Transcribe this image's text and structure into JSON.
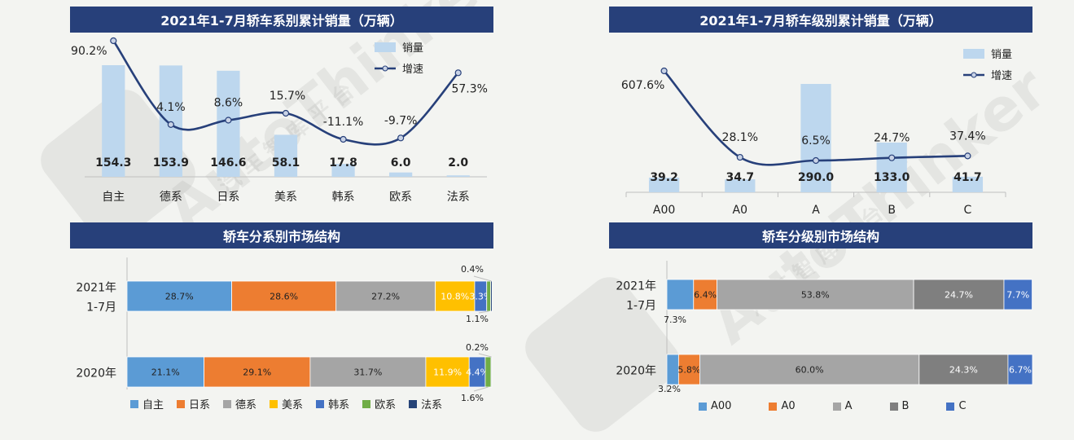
{
  "watermark": {
    "text": "AutoThinker",
    "sub": "汽 车 智 库 平 台"
  },
  "chart_data": [
    {
      "id": "series-sales",
      "type": "bar",
      "title": "2021年1-7月轿车系别累计销量（万辆）",
      "categories": [
        "自主",
        "德系",
        "日系",
        "美系",
        "韩系",
        "欧系",
        "法系"
      ],
      "series": [
        {
          "name": "销量",
          "type": "bar",
          "values": [
            154.3,
            153.9,
            146.6,
            58.1,
            17.8,
            6.0,
            2.0
          ],
          "labels": [
            "154.3",
            "153.9",
            "146.6",
            "58.1",
            "17.8",
            "6.0",
            "2.0"
          ],
          "color": "#bdd7ee"
        },
        {
          "name": "增速",
          "type": "line",
          "values": [
            90.2,
            4.1,
            8.6,
            15.7,
            -11.1,
            -9.7,
            57.3
          ],
          "labels": [
            "90.2%",
            "4.1%",
            "8.6%",
            "15.7%",
            "-11.1%",
            "-9.7%",
            "57.3%"
          ],
          "color": "#27407a"
        }
      ],
      "legend": {
        "bar": "销量",
        "line": "增速"
      }
    },
    {
      "id": "class-sales",
      "type": "bar",
      "title": "2021年1-7月轿车级别累计销量（万辆）",
      "categories": [
        "A00",
        "A0",
        "A",
        "B",
        "C"
      ],
      "series": [
        {
          "name": "销量",
          "type": "bar",
          "values": [
            39.2,
            34.7,
            290.0,
            133.0,
            41.7
          ],
          "labels": [
            "39.2",
            "34.7",
            "290.0",
            "133.0",
            "41.7"
          ],
          "color": "#bdd7ee"
        },
        {
          "name": "增速",
          "type": "line",
          "values": [
            607.6,
            28.1,
            6.5,
            24.7,
            37.4
          ],
          "labels": [
            "607.6%",
            "28.1%",
            "6.5%",
            "24.7%",
            "37.4%"
          ],
          "color": "#27407a"
        }
      ],
      "legend": {
        "bar": "销量",
        "line": "增速"
      }
    },
    {
      "id": "series-share",
      "type": "bar",
      "orientation": "horizontal-stacked",
      "title": "轿车分系别市场结构",
      "categories": [
        "2021年 1-7月",
        "2020年"
      ],
      "category_lines": [
        [
          "2021年",
          "1-7月"
        ],
        [
          "2020年"
        ]
      ],
      "series": [
        {
          "name": "自主",
          "color": "#5b9bd5",
          "values": [
            28.7,
            21.1
          ],
          "labels": [
            "28.7%",
            "21.1%"
          ]
        },
        {
          "name": "日系",
          "color": "#ed7d31",
          "values": [
            28.6,
            29.1
          ],
          "labels": [
            "28.6%",
            "29.1%"
          ]
        },
        {
          "name": "德系",
          "color": "#a5a5a5",
          "values": [
            27.2,
            31.7
          ],
          "labels": [
            "27.2%",
            "31.7%"
          ]
        },
        {
          "name": "美系",
          "color": "#ffc000",
          "values": [
            10.8,
            11.9
          ],
          "labels": [
            "10.8%",
            "11.9%"
          ]
        },
        {
          "name": "韩系",
          "color": "#4472c4",
          "values": [
            3.3,
            4.4
          ],
          "labels": [
            "3.3%",
            "4.4%"
          ]
        },
        {
          "name": "欧系",
          "color": "#70ad47",
          "values": [
            1.1,
            1.6
          ],
          "labels": [
            "1.1%",
            "1.6%"
          ]
        },
        {
          "name": "法系",
          "color": "#264478",
          "values": [
            0.4,
            0.2
          ],
          "labels": [
            "0.4%",
            "0.2%"
          ]
        }
      ]
    },
    {
      "id": "class-share",
      "type": "bar",
      "orientation": "horizontal-stacked",
      "title": "轿车分级别市场结构",
      "categories": [
        "2021年 1-7月",
        "2020年"
      ],
      "category_lines": [
        [
          "2021年",
          "1-7月"
        ],
        [
          "2020年"
        ]
      ],
      "series": [
        {
          "name": "A00",
          "color": "#5b9bd5",
          "values": [
            7.3,
            3.2
          ],
          "labels": [
            "7.3%",
            "3.2%"
          ]
        },
        {
          "name": "A0",
          "color": "#ed7d31",
          "values": [
            6.4,
            5.8
          ],
          "labels": [
            "6.4%",
            "5.8%"
          ]
        },
        {
          "name": "A",
          "color": "#a5a5a5",
          "values": [
            53.8,
            60.0
          ],
          "labels": [
            "53.8%",
            "60.0%"
          ]
        },
        {
          "name": "B",
          "color": "#7f7f7f",
          "values": [
            24.7,
            24.3
          ],
          "labels": [
            "24.7%",
            "24.3%"
          ]
        },
        {
          "name": "C",
          "color": "#4472c4",
          "values": [
            7.7,
            6.7
          ],
          "labels": [
            "7.7%",
            "6.7%"
          ]
        }
      ]
    }
  ]
}
